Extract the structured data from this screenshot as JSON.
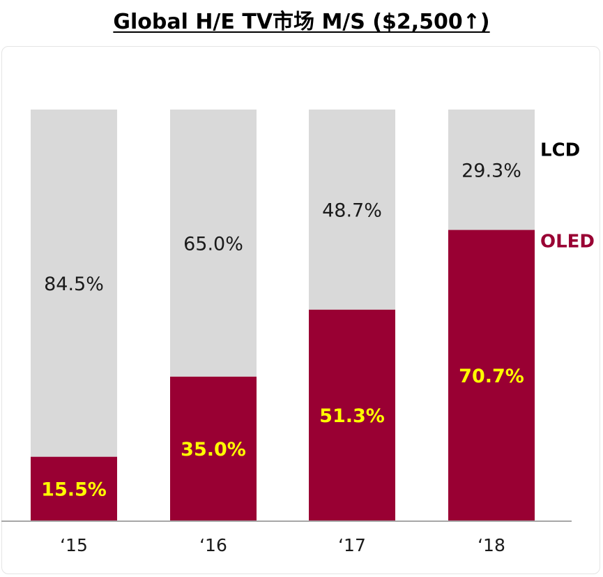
{
  "title": "Global H/E TV市场 M/S ($2,500↑)",
  "colors": {
    "lcd": "#d9d9d9",
    "oled": "#990033",
    "oled_label": "#ffff00",
    "axis": "#a6a6a6"
  },
  "chart_data": {
    "type": "bar",
    "stacked": true,
    "categories": [
      "‘15",
      "‘16",
      "‘17",
      "‘18"
    ],
    "series": [
      {
        "name": "OLED",
        "values": [
          15.5,
          35.0,
          51.3,
          70.7
        ],
        "labels": [
          "15.5%",
          "35.0%",
          "51.3%",
          "70.7%"
        ]
      },
      {
        "name": "LCD",
        "values": [
          84.5,
          65.0,
          48.7,
          29.3
        ],
        "labels": [
          "84.5%",
          "65.0%",
          "48.7%",
          "29.3%"
        ]
      }
    ],
    "ylim": [
      0,
      100
    ],
    "legend": "right, inline beside last bar",
    "grid": false
  }
}
